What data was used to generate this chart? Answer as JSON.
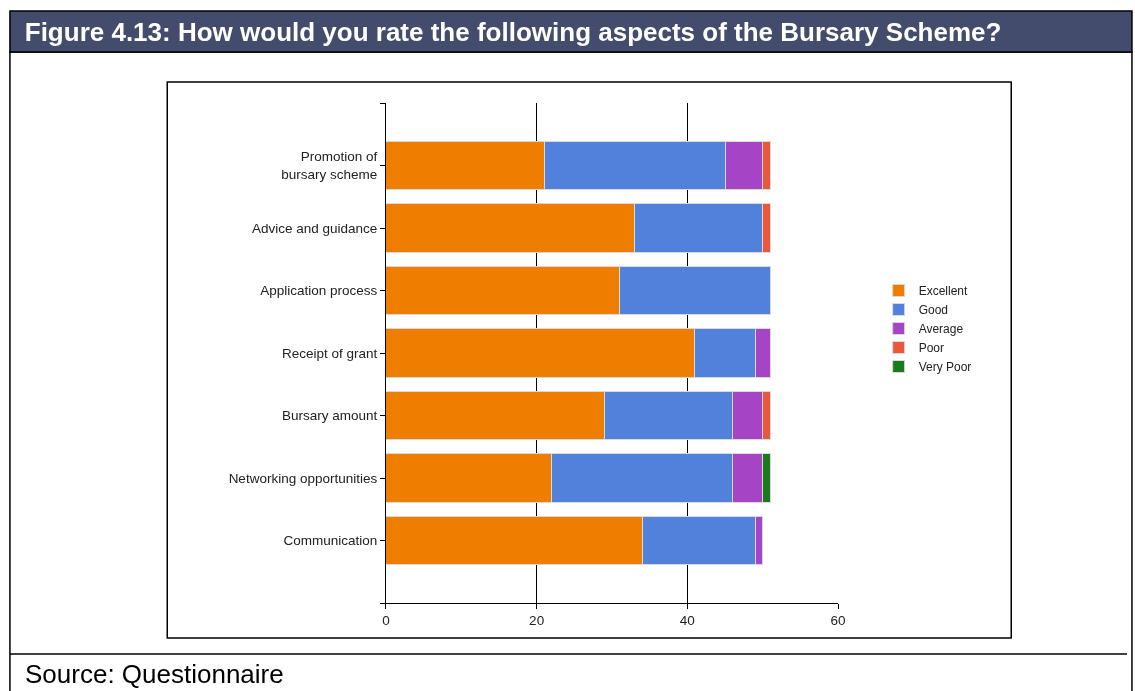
{
  "chart_data": {
    "type": "bar",
    "orientation": "horizontal",
    "stacked": true,
    "title": "Figure 4.13: How would you rate the following aspects of the Bursary Scheme?",
    "categories": [
      "Promotion of\nbursary scheme",
      "Advice and guidance",
      "Application process",
      "Receipt of grant",
      "Bursary amount",
      "Networking opportunities",
      "Communication"
    ],
    "series": [
      {
        "name": "Excellent",
        "color": "#ef7d00",
        "values": [
          21,
          33,
          31,
          41,
          29,
          22,
          34
        ]
      },
      {
        "name": "Good",
        "color": "#5181db",
        "values": [
          24,
          17,
          20,
          8,
          17,
          24,
          15
        ]
      },
      {
        "name": "Average",
        "color": "#a644c6",
        "values": [
          5,
          null,
          null,
          2,
          4,
          4,
          1
        ]
      },
      {
        "name": "Poor",
        "color": "#ea573b",
        "values": [
          1,
          1,
          null,
          null,
          1,
          null,
          null
        ]
      },
      {
        "name": "Very Poor",
        "color": "#1b7a1b",
        "values": [
          null,
          null,
          null,
          null,
          null,
          1,
          null
        ]
      }
    ],
    "xlim": [
      0,
      60
    ],
    "xticks": [
      0,
      20,
      40,
      60
    ],
    "grid": "x",
    "legend": "right",
    "annotations": [
      "Source: Questionnaire"
    ]
  }
}
